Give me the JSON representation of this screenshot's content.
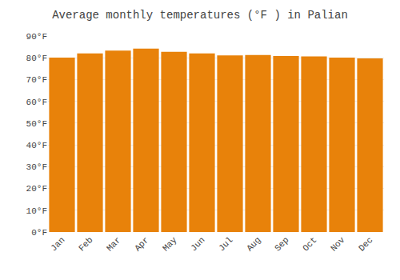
{
  "chart_data": {
    "type": "bar",
    "title": "Average monthly temperatures (°F ) in Palian",
    "categories": [
      "Jan",
      "Feb",
      "Mar",
      "Apr",
      "May",
      "Jun",
      "Jul",
      "Aug",
      "Sep",
      "Oct",
      "Nov",
      "Dec"
    ],
    "values": [
      80.1,
      82.0,
      83.3,
      84.2,
      82.7,
      82.0,
      81.1,
      81.3,
      80.8,
      80.6,
      80.1,
      79.7
    ],
    "color": "#E8820A",
    "ylim": [
      0,
      90
    ],
    "yticks": [
      {
        "value": 0,
        "label": "0°F"
      },
      {
        "value": 10,
        "label": "10°F"
      },
      {
        "value": 20,
        "label": "20°F"
      },
      {
        "value": 30,
        "label": "30°F"
      },
      {
        "value": 40,
        "label": "40°F"
      },
      {
        "value": 50,
        "label": "50°F"
      },
      {
        "value": 60,
        "label": "60°F"
      },
      {
        "value": 70,
        "label": "70°F"
      },
      {
        "value": 80,
        "label": "80°F"
      },
      {
        "value": 90,
        "label": "90°F"
      }
    ],
    "grid": true
  }
}
